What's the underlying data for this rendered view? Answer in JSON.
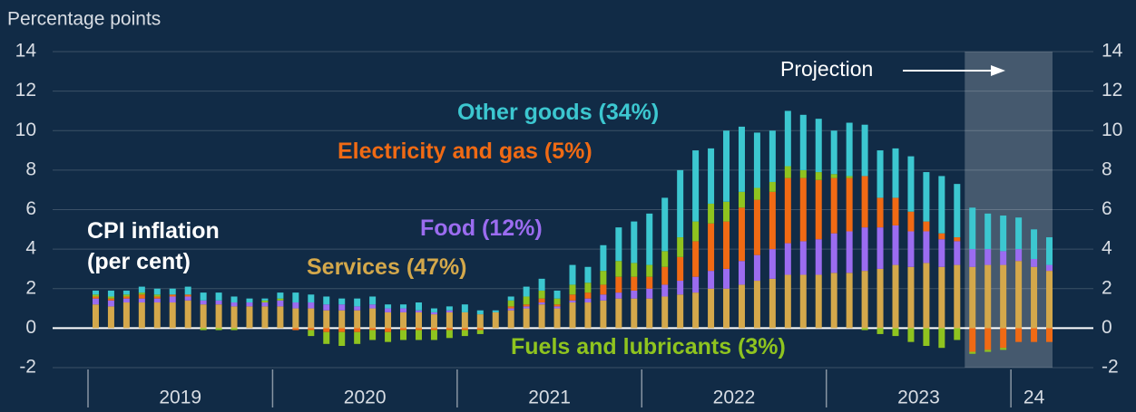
{
  "chart_data": {
    "type": "stacked_bar_line",
    "y_axis_label": "Percentage points",
    "categories": [
      null,
      null,
      null,
      null,
      null,
      null,
      null,
      null,
      null,
      null,
      null,
      null,
      null,
      null,
      null,
      null,
      null,
      null,
      null,
      null,
      null,
      null,
      null,
      null,
      null,
      null,
      null,
      null,
      null,
      null,
      null,
      null,
      null,
      null,
      null,
      null,
      null,
      null,
      null,
      null,
      null,
      null,
      null,
      null,
      null,
      null,
      null,
      null,
      null,
      null,
      null,
      null,
      null,
      null,
      null,
      null,
      null,
      null,
      null,
      null,
      null,
      null,
      null
    ],
    "x_groups": [
      {
        "label": "2019",
        "span": 12
      },
      {
        "label": "2020",
        "span": 12
      },
      {
        "label": "2021",
        "span": 12
      },
      {
        "label": "2022",
        "span": 12
      },
      {
        "label": "2023",
        "span": 12
      },
      {
        "label": "24",
        "span": 3
      }
    ],
    "ylim": [
      -2,
      14
    ],
    "yticks": [
      -2,
      0,
      2,
      4,
      6,
      8,
      10,
      12,
      14
    ],
    "y2lim": [
      -2,
      14
    ],
    "y2ticks": [
      -2,
      0,
      2,
      4,
      6,
      8,
      10,
      12,
      14
    ],
    "grid": true,
    "projection": {
      "label": "Projection",
      "start": 57
    },
    "series": [
      {
        "name": "Services (47%)",
        "color": "#d4a84b",
        "values": [
          1.2,
          1.1,
          1.3,
          1.3,
          1.3,
          1.3,
          1.4,
          1.2,
          1.2,
          1.1,
          1.1,
          1.1,
          1.1,
          1.0,
          1.0,
          0.9,
          0.9,
          0.9,
          1.0,
          0.8,
          0.8,
          0.8,
          0.7,
          0.8,
          0.8,
          0.7,
          0.8,
          0.9,
          1.0,
          1.2,
          1.0,
          1.3,
          1.3,
          1.4,
          1.5,
          1.5,
          1.5,
          1.6,
          1.7,
          1.8,
          2.0,
          2.0,
          2.2,
          2.4,
          2.5,
          2.7,
          2.7,
          2.7,
          2.8,
          2.8,
          2.9,
          3.0,
          3.2,
          3.1,
          3.3,
          3.1,
          3.2,
          3.1,
          3.2,
          3.2,
          3.4,
          3.1,
          2.9
        ]
      },
      {
        "name": "Food (12%)",
        "color": "#9b6cf0",
        "values": [
          0.3,
          0.3,
          0.2,
          0.2,
          0.2,
          0.3,
          0.2,
          0.2,
          0.2,
          0.2,
          0.2,
          0.2,
          0.3,
          0.3,
          0.3,
          0.3,
          0.3,
          0.2,
          0.2,
          0.2,
          0.2,
          0.1,
          0.1,
          0.1,
          0.0,
          0.0,
          0.0,
          0.1,
          0.1,
          0.1,
          0.1,
          0.1,
          0.2,
          0.3,
          0.3,
          0.4,
          0.5,
          0.6,
          0.7,
          0.8,
          0.9,
          1.0,
          1.2,
          1.3,
          1.5,
          1.6,
          1.7,
          1.8,
          2.0,
          2.1,
          2.2,
          2.1,
          2.0,
          1.8,
          1.6,
          1.4,
          1.2,
          0.9,
          0.8,
          0.7,
          0.6,
          0.4,
          0.3
        ]
      },
      {
        "name": "Electricity and gas (5%)",
        "color": "#f06a14",
        "values": [
          0.1,
          0.1,
          0.1,
          0.2,
          0.1,
          0.1,
          0.1,
          0.0,
          0.0,
          0.0,
          0.0,
          0.0,
          0.0,
          -0.1,
          -0.1,
          -0.2,
          -0.2,
          -0.2,
          -0.1,
          -0.2,
          -0.1,
          -0.1,
          -0.1,
          -0.1,
          -0.1,
          -0.1,
          0.0,
          0.1,
          0.1,
          0.2,
          0.1,
          0.3,
          0.3,
          0.5,
          0.8,
          0.7,
          0.6,
          0.9,
          1.2,
          1.8,
          2.4,
          2.4,
          2.7,
          2.8,
          2.9,
          3.3,
          3.2,
          3.0,
          2.8,
          2.7,
          2.6,
          1.5,
          1.4,
          1.0,
          0.5,
          0.3,
          0.2,
          -1.2,
          -1.1,
          -1.0,
          -0.7,
          -0.7,
          -0.7
        ]
      },
      {
        "name": "Fuels and lubricants (3%)",
        "color": "#8fc41f",
        "values": [
          0.1,
          0.1,
          0.1,
          0.1,
          0.1,
          0.0,
          0.0,
          -0.1,
          -0.1,
          -0.1,
          0.0,
          0.1,
          0.1,
          0.0,
          -0.3,
          -0.6,
          -0.7,
          -0.6,
          -0.5,
          -0.5,
          -0.5,
          -0.5,
          -0.5,
          -0.4,
          -0.3,
          -0.2,
          0.0,
          0.3,
          0.4,
          0.4,
          0.3,
          0.5,
          0.5,
          0.7,
          0.8,
          0.7,
          0.6,
          0.8,
          1.0,
          1.0,
          1.0,
          1.0,
          0.8,
          0.6,
          0.5,
          0.6,
          0.4,
          0.4,
          0.2,
          0.1,
          -0.1,
          -0.3,
          -0.4,
          -0.7,
          -0.9,
          -1.0,
          -0.6,
          -0.1,
          -0.1,
          -0.1,
          0.0,
          0.0,
          0.0
        ]
      },
      {
        "name": "Other goods (34%)",
        "color": "#3cc7d0",
        "values": [
          0.2,
          0.3,
          0.2,
          0.3,
          0.3,
          0.3,
          0.4,
          0.4,
          0.4,
          0.3,
          0.2,
          0.1,
          0.3,
          0.5,
          0.4,
          0.4,
          0.3,
          0.4,
          0.4,
          0.2,
          0.2,
          0.4,
          0.2,
          0.2,
          0.4,
          0.2,
          0.1,
          0.2,
          0.5,
          0.6,
          0.4,
          1.0,
          0.8,
          1.3,
          1.7,
          2.1,
          2.6,
          2.7,
          3.4,
          3.6,
          2.8,
          3.6,
          3.3,
          2.8,
          2.6,
          2.8,
          2.8,
          2.7,
          2.2,
          2.7,
          2.6,
          2.4,
          2.5,
          2.8,
          2.5,
          2.9,
          2.7,
          2.1,
          1.8,
          1.8,
          1.6,
          1.5,
          1.4
        ]
      },
      {
        "name": "CPI inflation (per cent)",
        "color": "#ffffff",
        "type": "line",
        "values": [
          1.9,
          1.9,
          1.9,
          2.1,
          2.0,
          2.0,
          2.1,
          1.7,
          1.7,
          1.5,
          1.5,
          1.3,
          1.8,
          1.7,
          1.3,
          0.8,
          0.6,
          0.7,
          1.0,
          0.3,
          0.6,
          0.7,
          0.4,
          0.6,
          0.8,
          0.6,
          0.9,
          1.6,
          2.1,
          2.5,
          1.9,
          3.2,
          3.1,
          4.2,
          5.1,
          5.4,
          5.8,
          6.6,
          8.0,
          9.0,
          9.1,
          10.0,
          10.2,
          9.9,
          10.0,
          11.0,
          10.8,
          10.6,
          10.0,
          10.4,
          10.2,
          8.7,
          8.7,
          8.0,
          7.0,
          6.7,
          6.7,
          4.8,
          4.6,
          4.6,
          4.9,
          4.3,
          3.9
        ]
      }
    ]
  }
}
